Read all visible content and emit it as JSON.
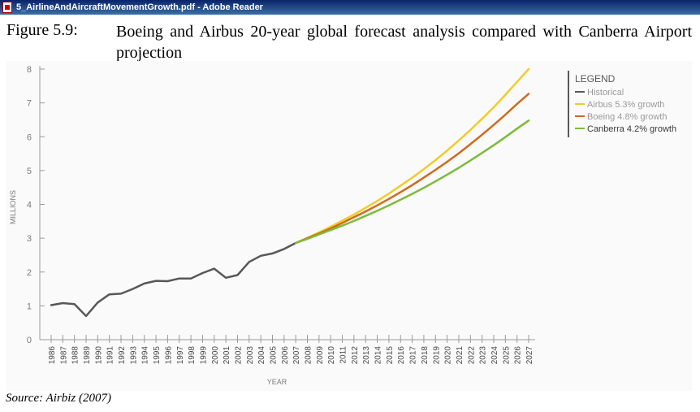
{
  "window": {
    "title": "5_AirlineAndAircraftMovementGrowth.pdf - Adobe Reader",
    "icon": "pdf-file-icon"
  },
  "figure": {
    "label": "Figure 5.9:",
    "title": "Boeing and Airbus 20-year global forecast analysis compared with Canberra Airport projection",
    "source": "Source: Airbiz (2007)"
  },
  "chart_data": {
    "type": "line",
    "xlabel": "YEAR",
    "ylabel": "MILLIONS",
    "ylim": [
      0,
      8
    ],
    "yticks": [
      0,
      1,
      2,
      3,
      4,
      5,
      6,
      7,
      8
    ],
    "categories": [
      "1986",
      "1987",
      "1988",
      "1989",
      "1990",
      "1991",
      "1992",
      "1993",
      "1994",
      "1995",
      "1996",
      "1997",
      "1998",
      "1999",
      "2000",
      "2001",
      "2002",
      "2003",
      "2004",
      "2005",
      "2006",
      "2007",
      "2008",
      "2009",
      "2010",
      "2011",
      "2012",
      "2013",
      "2014",
      "2015",
      "2016",
      "2017",
      "2018",
      "2019",
      "2020",
      "2021",
      "2022",
      "2023",
      "2024",
      "2025",
      "2026",
      "2027"
    ],
    "legend": {
      "title": "LEGEND",
      "position": "top-right"
    },
    "series": [
      {
        "name": "Historical",
        "color": "#58585a",
        "x": [
          1986,
          1987,
          1988,
          1989,
          1990,
          1991,
          1992,
          1993,
          1994,
          1995,
          1996,
          1997,
          1998,
          1999,
          2000,
          2001,
          2002,
          2003,
          2004,
          2005,
          2006,
          2007
        ],
        "values": [
          1.02,
          1.08,
          1.05,
          0.7,
          1.1,
          1.34,
          1.36,
          1.5,
          1.66,
          1.74,
          1.73,
          1.81,
          1.81,
          1.97,
          2.1,
          1.83,
          1.91,
          2.3,
          2.48,
          2.55,
          2.68,
          2.86
        ]
      },
      {
        "name": "Airbus 5.3% growth",
        "color": "#f2cb2b",
        "x": [
          2007,
          2008,
          2009,
          2010,
          2011,
          2012,
          2013,
          2014,
          2015,
          2016,
          2017,
          2018,
          2019,
          2020,
          2021,
          2022,
          2023,
          2024,
          2025,
          2026,
          2027
        ],
        "values": [
          2.86,
          3.01,
          3.17,
          3.34,
          3.52,
          3.7,
          3.9,
          4.1,
          4.32,
          4.55,
          4.79,
          5.04,
          5.31,
          5.59,
          5.89,
          6.2,
          6.53,
          6.87,
          7.24,
          7.62,
          8.0
        ]
      },
      {
        "name": "Boeing 4.8% growth",
        "color": "#d06a1e",
        "x": [
          2007,
          2008,
          2009,
          2010,
          2011,
          2012,
          2013,
          2014,
          2015,
          2016,
          2017,
          2018,
          2019,
          2020,
          2021,
          2022,
          2023,
          2024,
          2025,
          2026,
          2027
        ],
        "values": [
          2.86,
          3.0,
          3.14,
          3.29,
          3.45,
          3.62,
          3.79,
          3.97,
          4.16,
          4.36,
          4.57,
          4.79,
          5.02,
          5.26,
          5.51,
          5.78,
          6.06,
          6.35,
          6.65,
          6.97,
          7.27
        ]
      },
      {
        "name": "Canberra 4.2% growth",
        "color": "#7cbb3b",
        "x": [
          2007,
          2008,
          2009,
          2010,
          2011,
          2012,
          2013,
          2014,
          2015,
          2016,
          2017,
          2018,
          2019,
          2020,
          2021,
          2022,
          2023,
          2024,
          2025,
          2026,
          2027
        ],
        "values": [
          2.86,
          2.98,
          3.11,
          3.24,
          3.37,
          3.51,
          3.66,
          3.81,
          3.97,
          4.14,
          4.31,
          4.49,
          4.68,
          4.88,
          5.08,
          5.3,
          5.52,
          5.75,
          5.99,
          6.24,
          6.48
        ]
      }
    ]
  }
}
